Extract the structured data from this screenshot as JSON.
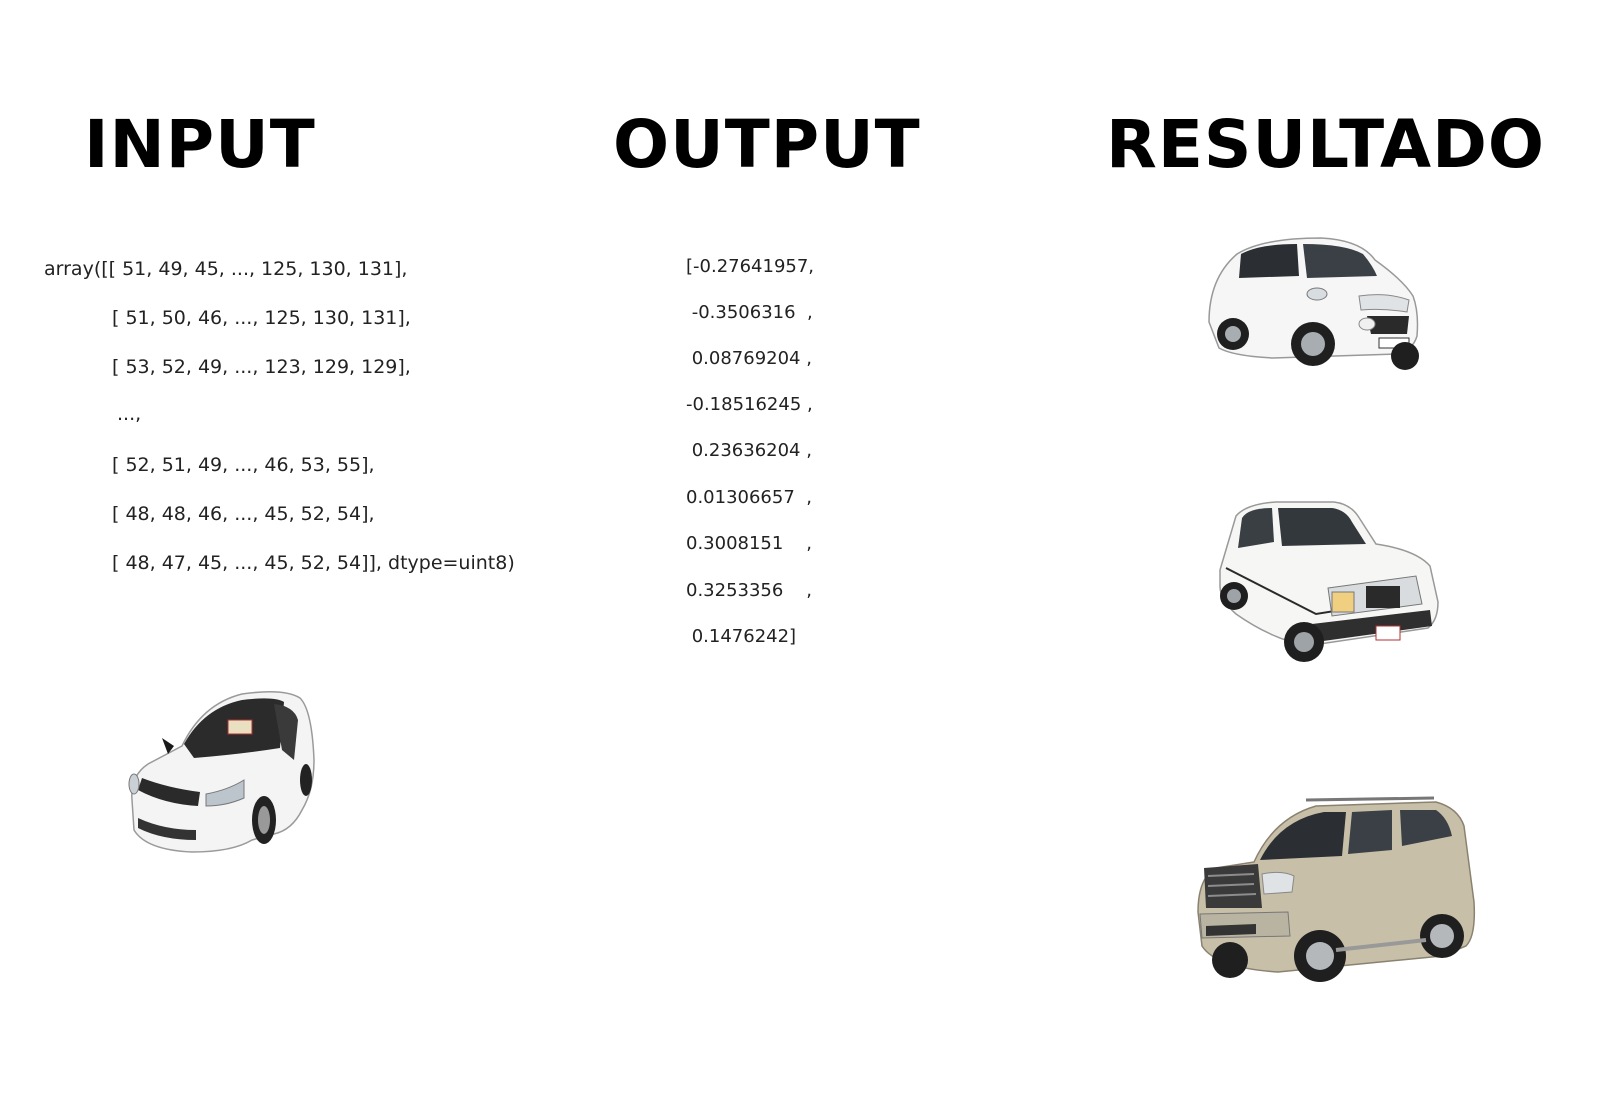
{
  "titles": {
    "input": "INPUT",
    "output": "OUTPUT",
    "result": "RESULTADO"
  },
  "input_array": [
    "array([[ 51, 49, 45, ..., 125, 130, 131],",
    "[ 51, 50, 46, ..., 125, 130, 131],",
    "[ 53, 52, 49, ..., 123, 129, 129],",
    "...,",
    "[ 52, 51, 49, ..., 46, 53, 55],",
    "[ 48, 48, 46, ..., 45, 52, 54],",
    "[ 48, 47, 45, ..., 45, 52, 54]], dtype=uint8)"
  ],
  "output_vector": [
    "[-0.27641957,",
    " -0.3506316  ,",
    " 0.08769204 ,",
    "-0.18516245 ,",
    " 0.23636204 ,",
    "0.01306657  ,",
    "0.3008151    ,",
    "0.3253356    ,",
    " 0.1476242]"
  ],
  "images": {
    "input_car": "white-sedan-photo",
    "result_car_1": "white-compact-suv-photo",
    "result_car_2": "white-classic-sedan-photo",
    "result_car_3": "silver-full-size-suv-photo"
  },
  "colors": {
    "background": "#ffffff",
    "title": "#000000",
    "text": "#222222"
  }
}
